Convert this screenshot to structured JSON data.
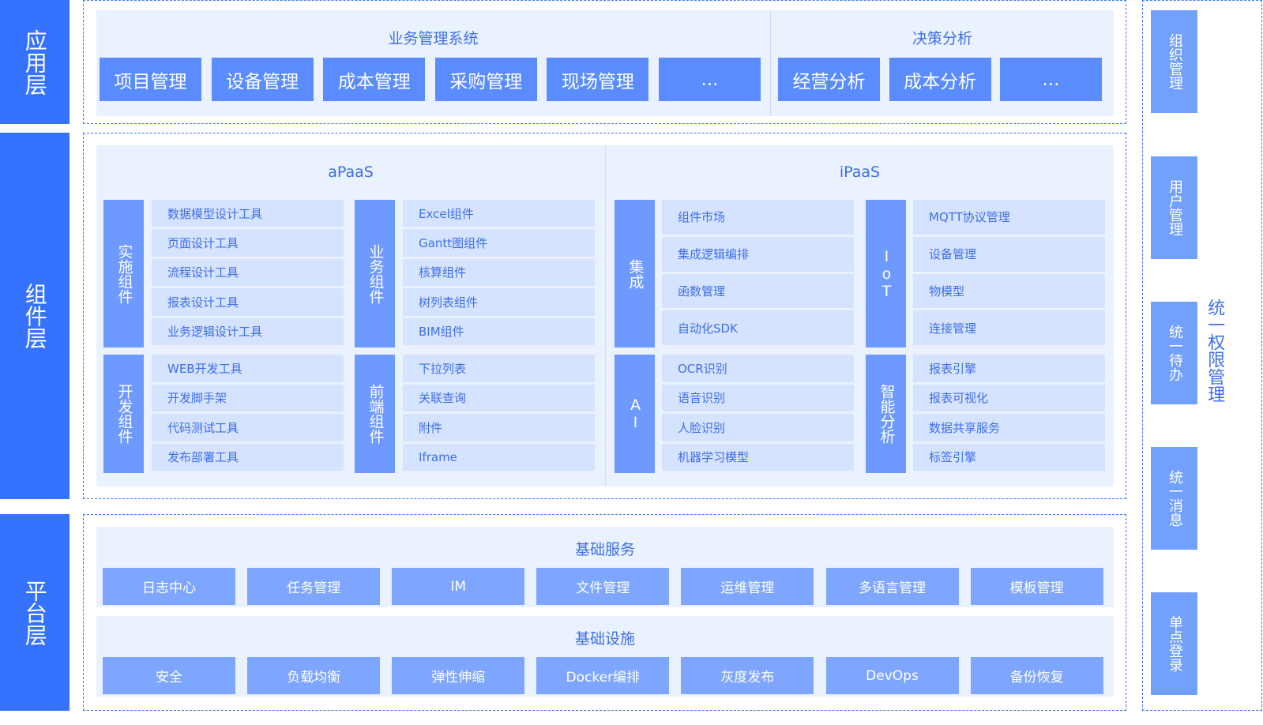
{
  "layers": [
    "应用层",
    "组件层",
    "平台层"
  ],
  "app": {
    "business": {
      "title": "业务管理系统",
      "items": [
        "项目管理",
        "设备管理",
        "成本管理",
        "采购管理",
        "现场管理",
        "..."
      ]
    },
    "decision": {
      "title": "决策分析",
      "items": [
        "经营分析",
        "成本分析",
        "..."
      ]
    }
  },
  "components": {
    "apaas": {
      "title": "aPaaS",
      "groups": [
        {
          "label": "实施组件",
          "items": [
            "数据模型设计工具",
            "页面设计工具",
            "流程设计工具",
            "报表设计工具",
            "业务逻辑设计工具"
          ]
        },
        {
          "label": "业务组件",
          "items": [
            "Excel组件",
            "Gantt图组件",
            "核算组件",
            "树列表组件",
            "BIM组件"
          ]
        },
        {
          "label": "开发组件",
          "items": [
            "WEB开发工具",
            "开发脚手架",
            "代码测试工具",
            "发布部署工具"
          ]
        },
        {
          "label": "前端组件",
          "items": [
            "下拉列表",
            "关联查询",
            "附件",
            "Iframe"
          ]
        }
      ]
    },
    "ipaas": {
      "title": "iPaaS",
      "groups": [
        {
          "label": "集成",
          "items": [
            "组件市场",
            "集成逻辑编排",
            "函数管理",
            "自动化SDK"
          ]
        },
        {
          "label": "IoT",
          "items": [
            "MQTT协议管理",
            "设备管理",
            "物模型",
            "连接管理"
          ]
        },
        {
          "label": "AI",
          "items": [
            "OCR识别",
            "语音识别",
            "人脸识别",
            "机器学习模型"
          ]
        },
        {
          "label": "智能分析",
          "items": [
            "报表引擎",
            "报表可视化",
            "数据共享服务",
            "标签引擎"
          ]
        }
      ]
    }
  },
  "platform": {
    "services": {
      "title": "基础服务",
      "items": [
        "日志中心",
        "任务管理",
        "IM",
        "文件管理",
        "运维管理",
        "多语言管理",
        "模板管理"
      ]
    },
    "infra": {
      "title": "基础设施",
      "items": [
        "安全",
        "负载均衡",
        "弹性伸缩",
        "Docker编排",
        "灰度发布",
        "DevOps",
        "备份恢复"
      ]
    }
  },
  "permissions": {
    "title": "统一权限管理",
    "items": [
      "组织管理",
      "用户管理",
      "统一待办",
      "统一消息",
      "单点登录"
    ]
  },
  "colors": {
    "layer": "#3572fe",
    "app_button": "#5a8cff",
    "panel": "#eaf1ff",
    "side_label": "#6e9aff",
    "item": "#d6e3ff",
    "text": "#3d6fe8",
    "platform_button": "#7ea6ff",
    "permission_box": "#72a0ff"
  }
}
